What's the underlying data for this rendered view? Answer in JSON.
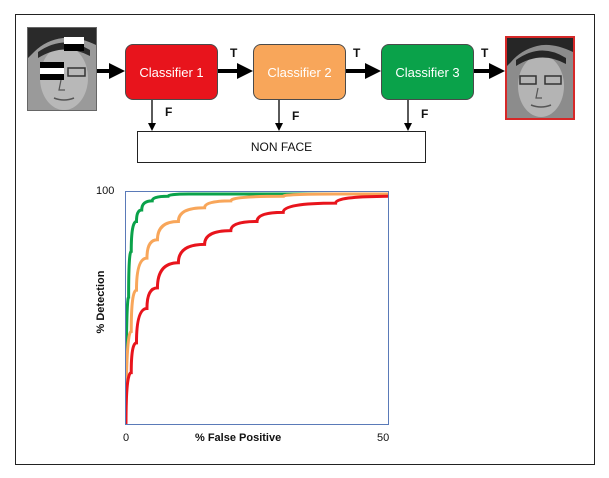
{
  "pipeline": {
    "classifiers": [
      "Classifier 1",
      "Classifier 2",
      "Classifier 3"
    ],
    "true_label": "T",
    "false_label": "F",
    "non_face_label": "NON FACE"
  },
  "colors": {
    "classifier1": "#e8141c",
    "classifier2": "#f8a65a",
    "classifier3": "#0aa24a",
    "output_face_border": "#d62828"
  },
  "chart_data": {
    "type": "line",
    "title": "",
    "xlabel": "% False Positive",
    "ylabel": "% Detection",
    "x_ticks": [
      "0",
      "50"
    ],
    "y_ticks": [
      "100"
    ],
    "xlim": [
      0,
      50
    ],
    "ylim": [
      0,
      100
    ],
    "series": [
      {
        "color": "#0aa24a",
        "x": [
          0,
          0.5,
          1,
          2,
          3,
          5,
          8,
          12,
          20,
          30,
          40,
          50
        ],
        "y": [
          0,
          55,
          75,
          88,
          93,
          97,
          99,
          100,
          100,
          100,
          100,
          100
        ]
      },
      {
        "color": "#f8a65a",
        "x": [
          0,
          1,
          2,
          4,
          6,
          10,
          15,
          20,
          30,
          40,
          50
        ],
        "y": [
          0,
          40,
          58,
          72,
          80,
          88,
          94,
          97,
          99,
          100,
          100
        ]
      },
      {
        "color": "#e8141c",
        "x": [
          0,
          1,
          2,
          4,
          6,
          10,
          15,
          20,
          25,
          30,
          40,
          50
        ],
        "y": [
          0,
          22,
          35,
          50,
          59,
          70,
          78,
          84,
          88,
          92,
          96,
          99
        ]
      }
    ]
  }
}
